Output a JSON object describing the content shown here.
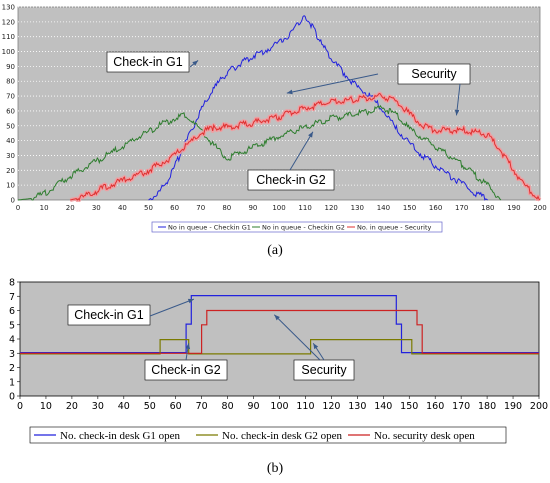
{
  "chart_data": [
    {
      "type": "line",
      "caption": "(a)",
      "xlim": [
        0,
        200
      ],
      "ylim": [
        0,
        130
      ],
      "xticks": [
        0,
        10,
        20,
        30,
        40,
        50,
        60,
        70,
        80,
        90,
        100,
        110,
        120,
        130,
        140,
        150,
        160,
        170,
        180,
        190,
        200
      ],
      "yticks": [
        0,
        10,
        20,
        30,
        40,
        50,
        60,
        70,
        80,
        90,
        100,
        110,
        120,
        130
      ],
      "background": "#c0c0c0",
      "series": [
        {
          "name": "No in queue - Checkin G1",
          "color": "#2222dd",
          "x": [
            50,
            54,
            58,
            62,
            66,
            70,
            74,
            78,
            82,
            86,
            90,
            95,
            100,
            105,
            108,
            110,
            113,
            116,
            120,
            125,
            130,
            135,
            140,
            145,
            150,
            155,
            160,
            165,
            170,
            175,
            180
          ],
          "y": [
            0,
            5,
            15,
            30,
            45,
            60,
            72,
            82,
            88,
            93,
            97,
            101,
            106,
            113,
            120,
            124,
            116,
            106,
            95,
            85,
            76,
            70,
            60,
            48,
            38,
            30,
            23,
            17,
            11,
            5,
            0
          ]
        },
        {
          "name": "No in queue - Checkin G2",
          "color": "#2e7d2e",
          "x": [
            0,
            5,
            10,
            15,
            20,
            25,
            30,
            35,
            40,
            45,
            50,
            55,
            60,
            64,
            70,
            75,
            80,
            85,
            90,
            95,
            100,
            110,
            120,
            130,
            140,
            145,
            150,
            160,
            170,
            180,
            185
          ],
          "y": [
            0,
            1,
            4,
            10,
            16,
            21,
            26,
            31,
            36,
            41,
            46,
            51,
            55,
            57,
            47,
            37,
            28,
            32,
            35,
            39,
            43,
            49,
            55,
            58,
            62,
            57,
            48,
            36,
            24,
            10,
            0
          ]
        },
        {
          "name": "No. in queue - Security",
          "color": "#e03030",
          "x": [
            20,
            25,
            30,
            35,
            40,
            45,
            50,
            55,
            60,
            65,
            70,
            75,
            80,
            90,
            100,
            110,
            120,
            130,
            140,
            145,
            150,
            155,
            160,
            170,
            180,
            185,
            190,
            195,
            200
          ],
          "y": [
            0,
            2,
            6,
            10,
            13,
            16,
            20,
            25,
            30,
            37,
            45,
            49,
            49,
            52,
            56,
            62,
            66,
            68,
            70,
            66,
            58,
            50,
            47,
            47,
            44,
            33,
            20,
            8,
            0
          ]
        }
      ],
      "annotations": [
        {
          "text": "Check-in G1",
          "target": [
            69,
            94
          ]
        },
        {
          "text": "Check-in G2",
          "target": [
            113,
            46
          ]
        },
        {
          "text": "Security",
          "target": [
            103,
            72
          ]
        },
        {
          "text": "Security",
          "target": [
            168,
            57
          ]
        }
      ],
      "legend_position": "bottom"
    },
    {
      "type": "line",
      "caption": "(b)",
      "xlim": [
        0,
        200
      ],
      "ylim": [
        0,
        8
      ],
      "xticks": [
        0,
        10,
        20,
        30,
        40,
        50,
        60,
        70,
        80,
        90,
        100,
        110,
        120,
        130,
        140,
        150,
        160,
        170,
        180,
        190,
        200
      ],
      "yticks": [
        0,
        1,
        2,
        3,
        4,
        5,
        6,
        7,
        8
      ],
      "background": "#c0c0c0",
      "series": [
        {
          "name": "No. check-in desk G1 open",
          "color": "#2222dd",
          "x": [
            0,
            64,
            64,
            66,
            66,
            145,
            145,
            147,
            147,
            200
          ],
          "y": [
            3,
            3,
            5,
            5,
            7,
            7,
            5,
            5,
            3,
            3
          ]
        },
        {
          "name": "No. check-in desk G2 open",
          "color": "#7a7a00",
          "x": [
            0,
            54,
            54,
            65,
            65,
            112,
            112,
            151,
            151,
            200
          ],
          "y": [
            3,
            3,
            4,
            4,
            3,
            3,
            4,
            4,
            3,
            3
          ]
        },
        {
          "name": "No. security desk open",
          "color": "#cc2222",
          "x": [
            0,
            70,
            70,
            72,
            72,
            153,
            153,
            155,
            155,
            200
          ],
          "y": [
            3,
            3,
            5,
            5,
            6,
            6,
            5,
            5,
            3,
            3
          ]
        }
      ],
      "annotations": [
        {
          "text": "Check-in G1",
          "target": [
            67,
            6.8
          ]
        },
        {
          "text": "Check-in G2",
          "target": [
            65,
            3.7
          ]
        },
        {
          "text": "Security",
          "target": [
            98,
            5.7
          ]
        },
        {
          "text": "Security",
          "target": [
            113,
            3.7
          ]
        }
      ],
      "legend_position": "bottom"
    }
  ]
}
